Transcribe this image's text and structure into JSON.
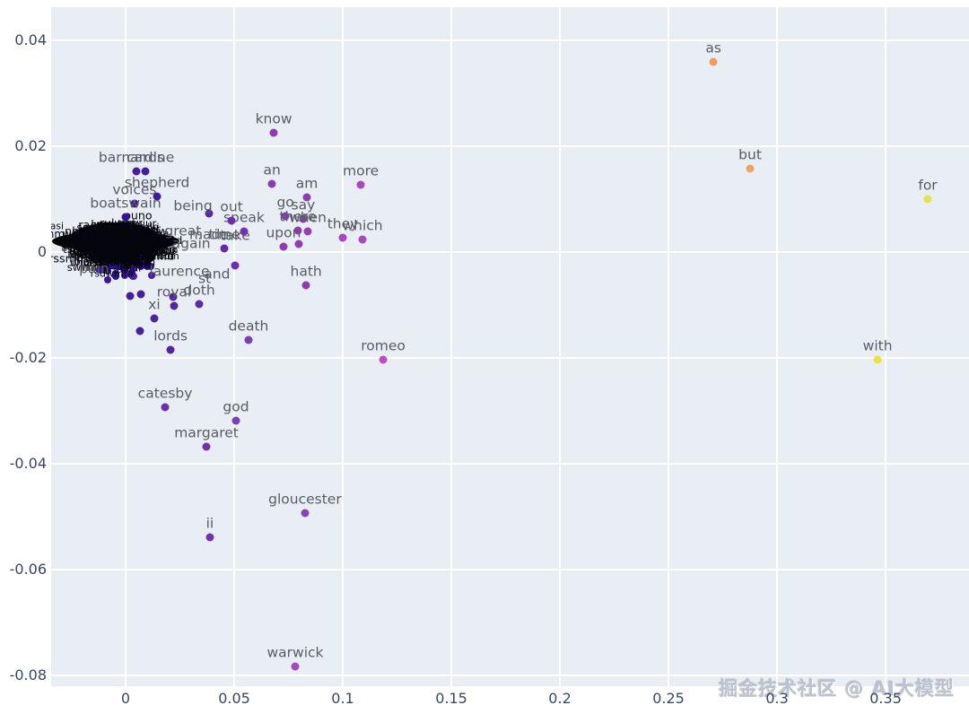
{
  "watermark": "掘金技术社区 @ AI大模型",
  "chart_data": {
    "type": "scatter",
    "title": "",
    "xlabel": "",
    "ylabel": "",
    "grid": true,
    "legend": false,
    "background_color": "#e9edf4",
    "gridline_color": "#ffffff",
    "tick_color": "#3a4569",
    "label_color": "#5a5c64",
    "xlim": [
      -0.0343,
      0.3884
    ],
    "ylim": [
      -0.082,
      0.0463
    ],
    "x_tick_values": [
      0,
      0.05,
      0.1,
      0.15,
      0.2,
      0.25,
      0.3,
      0.35
    ],
    "x_tick_labels": [
      "0",
      "0.05",
      "0.1",
      "0.15",
      "0.2",
      "0.25",
      "0.3",
      "0.35"
    ],
    "y_tick_values": [
      -0.08,
      -0.06,
      -0.04,
      -0.02,
      0,
      0.02,
      0.04
    ],
    "y_tick_labels": [
      "-0.08",
      "-0.06",
      "-0.04",
      "-0.02",
      "0",
      "0.02",
      "0.04"
    ],
    "points": [
      {
        "label": "as",
        "x": 0.2707,
        "y": 0.0359,
        "color": "#ed9d60"
      },
      {
        "label": "but",
        "x": 0.2876,
        "y": 0.0158,
        "color": "#f0a463"
      },
      {
        "label": "for",
        "x": 0.3694,
        "y": 0.01,
        "color": "#e5e34c"
      },
      {
        "label": "with",
        "x": 0.3463,
        "y": -0.0203,
        "color": "#ece33e"
      },
      {
        "label": "know",
        "x": 0.0682,
        "y": 0.0225,
        "color": "#8b3bb5"
      },
      {
        "label": "an",
        "x": 0.0674,
        "y": 0.0129,
        "color": "#8a3ab5"
      },
      {
        "label": "am",
        "x": 0.0835,
        "y": 0.0103,
        "color": "#8f3cb3"
      },
      {
        "label": "more",
        "x": 0.1083,
        "y": 0.0127,
        "color": "#a847c0"
      },
      {
        "label": "say",
        "x": 0.0818,
        "y": 0.0063,
        "color": "#8f3cb3"
      },
      {
        "label": "go",
        "x": 0.0736,
        "y": 0.0068,
        "color": "#8a3ab5"
      },
      {
        "label": "there",
        "x": 0.0793,
        "y": 0.0041,
        "color": "#903db6"
      },
      {
        "label": "when",
        "x": 0.0839,
        "y": 0.0039,
        "color": "#943eb8"
      },
      {
        "label": "upon",
        "x": 0.0727,
        "y": 0.001,
        "color": "#8f3cb3"
      },
      {
        "label": "they",
        "x": 0.1,
        "y": 0.0027,
        "color": "#a847c0"
      },
      {
        "label": "which",
        "x": 0.1091,
        "y": 0.0024,
        "color": "#aa48c0"
      },
      {
        "label": "speak",
        "x": 0.0545,
        "y": 0.0039,
        "color": "#7233ad"
      },
      {
        "label": "out",
        "x": 0.0488,
        "y": 0.0059,
        "color": "#6b2fab"
      },
      {
        "label": "time",
        "x": 0.0455,
        "y": 0.0007,
        "color": "#622aa8"
      },
      {
        "label": "hath",
        "x": 0.0831,
        "y": -0.0063,
        "color": "#8f3cb3"
      },
      {
        "label": "doth",
        "x": 0.0339,
        "y": -0.0098,
        "color": "#5f28a6"
      },
      {
        "label": "royal",
        "x": 0.0223,
        "y": -0.0102,
        "color": "#5526a2"
      },
      {
        "label": "xi",
        "x": 0.0132,
        "y": -0.0125,
        "color": "#4f229f"
      },
      {
        "label": "lords",
        "x": 0.0207,
        "y": -0.0185,
        "color": "#54259f"
      },
      {
        "label": "death",
        "x": 0.0566,
        "y": -0.0166,
        "color": "#7d3db3"
      },
      {
        "label": "romeo",
        "x": 0.1186,
        "y": -0.0203,
        "color": "#bb4ec4"
      },
      {
        "label": "catesby",
        "x": 0.0182,
        "y": -0.0293,
        "color": "#6d30ac"
      },
      {
        "label": "god",
        "x": 0.0508,
        "y": -0.0319,
        "color": "#7d3db3"
      },
      {
        "label": "margaret",
        "x": 0.0372,
        "y": -0.0368,
        "color": "#7433ae"
      },
      {
        "label": "gloucester",
        "x": 0.0826,
        "y": -0.0493,
        "color": "#8d3fb5"
      },
      {
        "label": "ii",
        "x": 0.0388,
        "y": -0.0539,
        "color": "#7433ae"
      },
      {
        "label": "warwick",
        "x": 0.0781,
        "y": -0.0783,
        "color": "#a04cc0"
      },
      {
        "label": "barnardine",
        "x": 0.005,
        "y": 0.0153,
        "color": "#44209f"
      },
      {
        "label": "cards",
        "x": 0.0091,
        "y": 0.0153,
        "color": "#44209f"
      },
      {
        "label": "shepherd",
        "x": 0.0145,
        "y": 0.0105,
        "color": "#3f1c9d"
      },
      {
        "label": "voices",
        "x": 0.0041,
        "y": 0.0092,
        "color": "#3b169b"
      },
      {
        "label": "boatswain",
        "x": 0.0,
        "y": 0.0066,
        "color": "#36129a"
      }
    ],
    "fringe_labels": [
      {
        "label": "being",
        "x": 0.031,
        "y": 0.0086
      },
      {
        "label": "made",
        "x": 0.0384,
        "y": 0.0032
      },
      {
        "label": "take",
        "x": 0.0504,
        "y": 0.0031
      },
      {
        "label": "great",
        "x": 0.0264,
        "y": 0.0039
      },
      {
        "label": "again",
        "x": 0.0302,
        "y": 0.0015
      },
      {
        "label": "st",
        "x": 0.0364,
        "y": -0.0051
      },
      {
        "label": "and",
        "x": 0.0421,
        "y": -0.0042
      },
      {
        "label": "pain",
        "x": -0.0145,
        "y": -0.0032
      },
      {
        "label": "laurence",
        "x": 0.0248,
        "y": -0.0037
      }
    ],
    "unlabeled_dots": [
      {
        "x": 0.0384,
        "y": 0.0073,
        "color": "#5b27a5"
      },
      {
        "x": 0.0504,
        "y": -0.0025,
        "color": "#6b2fab"
      },
      {
        "x": 0.0798,
        "y": 0.0015,
        "color": "#8f3cb3"
      },
      {
        "x": 0.0021,
        "y": -0.0083,
        "color": "#44209f"
      },
      {
        "x": 0.007,
        "y": -0.008,
        "color": "#44209f"
      },
      {
        "x": 0.0219,
        "y": -0.0085,
        "color": "#4f229f"
      },
      {
        "x": 0.0066,
        "y": -0.0149,
        "color": "#44209f"
      }
    ],
    "overplot_cluster": {
      "description": "dense mass of hundreds of overlapping dark word labels and indigo points near the origin, rendered as an illegible black lens-shaped blob with ragged text edges",
      "center_x": -0.0045,
      "center_y": 0.0017,
      "dot_colors": [
        "#1f0c7a",
        "#2d1080",
        "#3a169b",
        "#471fa0",
        "#2a0f8e"
      ]
    }
  }
}
